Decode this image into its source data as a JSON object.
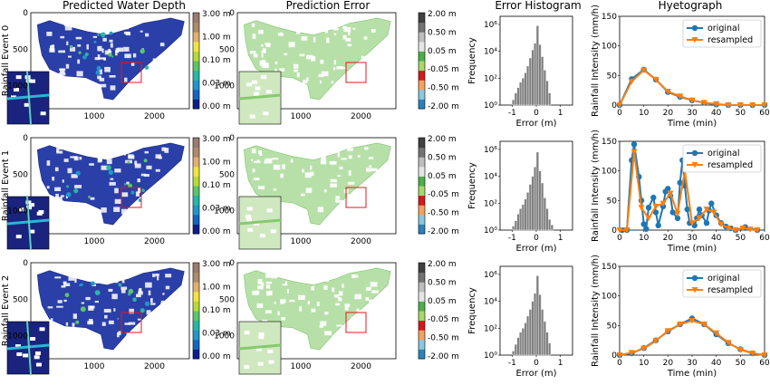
{
  "column_titles": {
    "depth": "Predicted Water Depth",
    "error": "Prediction Error",
    "histogram": "Error Histogram",
    "hyetograph": "Hyetograph"
  },
  "row_labels": [
    "Rainfall Event 0",
    "Rainfall Event 1",
    "Rainfall Event 2"
  ],
  "colors": {
    "original": "#1f77b4",
    "resampled": "#ff7f0e",
    "histogram_bar": "#808080",
    "zoom_box": "#e31a1c",
    "depth_colormap": [
      "#0a1f8f",
      "#1565c0",
      "#2196c8",
      "#29b6a6",
      "#5cc46a",
      "#b8d93a",
      "#f0e442",
      "#e0b070",
      "#b08a6a",
      "#9a7b6e"
    ],
    "error_colormap": [
      "#2b83ba",
      "#8ac7e0",
      "#f4a261",
      "#d7191c",
      "#a6d96a",
      "#4daf4a",
      "#e5e5e5",
      "#bdbdbd",
      "#737373",
      "#404040"
    ]
  },
  "map_axis": {
    "xticks": [
      "1000",
      "2000"
    ],
    "yticks": [
      "0",
      "500",
      "1000"
    ]
  },
  "depth_colorbar_ticks": [
    "3.00 m",
    "1.00 m",
    "0.10 m",
    "0.03 m",
    "0.00 m"
  ],
  "error_colorbar_ticks": [
    "2.00 m",
    "0.50 m",
    "0.05 m",
    "-0.05 m",
    "-0.50 m",
    "-2.00 m"
  ],
  "chart_data": [
    {
      "type": "bar",
      "panel": "Error Histogram",
      "xlabel": "Error (m)",
      "ylabel": "Frequency",
      "xticks": [
        "-1",
        "0",
        "1"
      ],
      "yticks": [
        "10⁰",
        "10²",
        "10⁴",
        "10⁶"
      ],
      "yscale": "log",
      "xlim": [
        -1.5,
        1.5
      ],
      "ylim_exp": [
        0,
        6.6
      ],
      "bins": [
        -1.0,
        -0.9,
        -0.8,
        -0.7,
        -0.6,
        -0.5,
        -0.4,
        -0.3,
        -0.2,
        -0.1,
        0.0,
        0.1,
        0.2,
        0.3,
        0.4,
        0.5,
        0.6
      ],
      "rows": [
        {
          "counts_log10": [
            0.4,
            0.9,
            1.3,
            1.7,
            2.0,
            2.4,
            2.9,
            3.5,
            4.1,
            4.6,
            5.9,
            4.5,
            3.6,
            2.6,
            1.8,
            0.9,
            0.0
          ]
        },
        {
          "counts_log10": [
            0.3,
            0.7,
            1.2,
            1.6,
            1.9,
            2.3,
            2.8,
            3.4,
            4.0,
            4.7,
            5.8,
            4.4,
            3.5,
            2.4,
            1.6,
            0.8,
            0.4
          ]
        },
        {
          "counts_log10": [
            0.3,
            0.8,
            1.3,
            1.7,
            2.0,
            2.4,
            2.9,
            3.4,
            4.0,
            4.6,
            5.9,
            4.5,
            3.4,
            2.5,
            1.7,
            0.9,
            0.0
          ]
        }
      ]
    },
    {
      "type": "line",
      "panel": "Hyetograph",
      "xlabel": "Time (min)",
      "ylabel": "Rainfall Intensity (mm/h)",
      "xlim": [
        0,
        60
      ],
      "ylim": [
        0,
        150
      ],
      "xticks": [
        "0",
        "10",
        "20",
        "30",
        "40",
        "50",
        "60"
      ],
      "yticks": [
        "0",
        "50",
        "100",
        "150"
      ],
      "legend": "top-right",
      "rows": [
        {
          "series": [
            {
              "name": "original",
              "x": [
                0,
                5,
                10,
                15,
                20,
                25,
                30,
                35,
                40,
                45,
                50,
                55,
                60
              ],
              "y": [
                0,
                44,
                60,
                43,
                22,
                14,
                8,
                4,
                1,
                0,
                0,
                0,
                0
              ]
            },
            {
              "name": "resampled",
              "x": [
                0,
                5,
                10,
                15,
                20,
                25,
                30,
                35,
                40,
                45,
                50,
                55,
                60
              ],
              "y": [
                0,
                40,
                59,
                43,
                23,
                15,
                8,
                4,
                2,
                0,
                0,
                0,
                0
              ]
            }
          ]
        },
        {
          "series": [
            {
              "name": "original",
              "x": [
                1,
                3,
                5,
                6,
                8,
                9,
                10,
                11,
                12,
                14,
                15,
                16,
                18,
                19,
                20,
                21,
                22,
                24,
                25,
                26,
                27,
                28,
                29,
                31,
                32,
                33,
                34,
                36,
                37,
                38,
                40,
                42,
                44,
                46,
                48,
                52,
                57
              ],
              "y": [
                0,
                0,
                118,
                145,
                90,
                50,
                10,
                2,
                38,
                55,
                30,
                8,
                40,
                65,
                70,
                58,
                30,
                20,
                80,
                118,
                75,
                35,
                12,
                8,
                20,
                35,
                25,
                12,
                33,
                45,
                25,
                12,
                6,
                3,
                0,
                5,
                0
              ]
            },
            {
              "name": "resampled",
              "x": [
                0,
                3,
                6,
                9,
                12,
                15,
                18,
                21,
                24,
                27,
                30,
                33,
                36,
                39,
                42,
                45,
                48,
                51,
                54,
                57
              ],
              "y": [
                0,
                0,
                132,
                38,
                20,
                40,
                45,
                62,
                28,
                100,
                12,
                20,
                35,
                30,
                10,
                3,
                0,
                3,
                1,
                0
              ]
            }
          ]
        },
        {
          "series": [
            {
              "name": "original",
              "x": [
                0,
                5,
                10,
                15,
                20,
                25,
                30,
                35,
                40,
                45,
                50,
                55,
                60
              ],
              "y": [
                0,
                3,
                12,
                25,
                40,
                52,
                62,
                52,
                35,
                20,
                10,
                3,
                0
              ]
            },
            {
              "name": "resampled",
              "x": [
                0,
                5,
                10,
                15,
                20,
                25,
                30,
                35,
                40,
                45,
                50,
                55,
                60
              ],
              "y": [
                0,
                4,
                11,
                24,
                41,
                52,
                58,
                52,
                37,
                21,
                9,
                3,
                0
              ]
            }
          ]
        }
      ]
    }
  ]
}
